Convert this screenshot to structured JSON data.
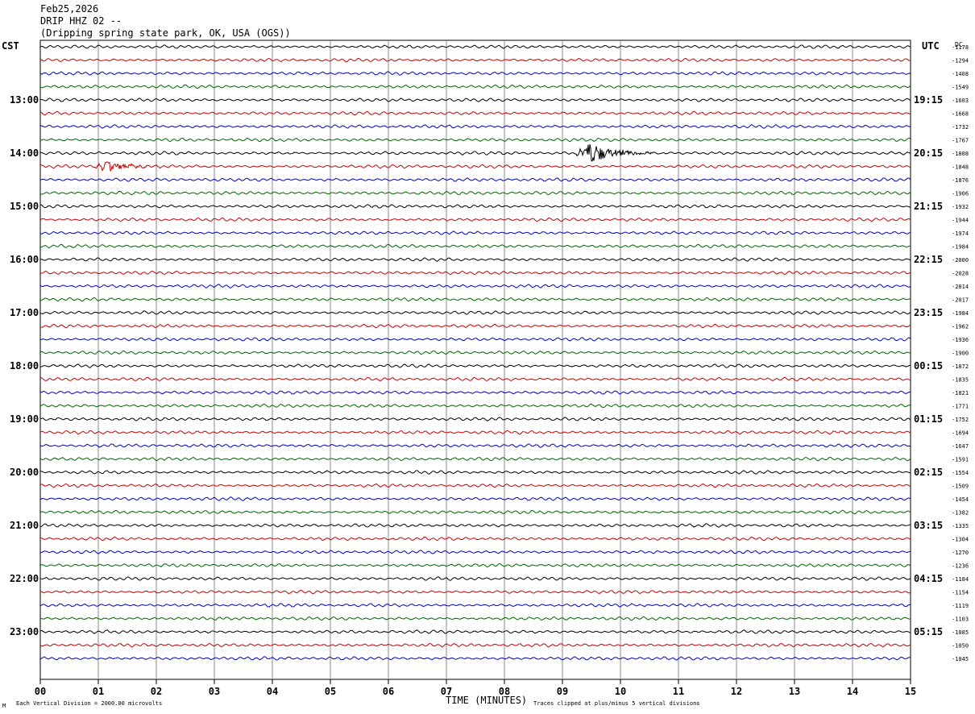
{
  "header": {
    "date": "Feb25,2026",
    "station": "DRIP HHZ 02 --",
    "location": "(Dripping spring state park, OK, USA (OGS))"
  },
  "left_axis_label": "CST",
  "right_axis_label": "UTC",
  "dc_label": "DC",
  "footer": {
    "left": "Each Vertical Division = 2000.00 microvolts",
    "center": "TIME (MINUTES)",
    "right": "Traces clipped at plus/minus 5 vertical divisions",
    "corner_mark": "M"
  },
  "colors": {
    "cycle": [
      "#000000",
      "#cc0000",
      "#0000cc",
      "#006600"
    ],
    "grid": "#888888"
  },
  "chart_data": {
    "type": "line",
    "title": "DRIP HHZ 02 --",
    "xlabel": "TIME (MINUTES)",
    "xlim": [
      0,
      15
    ],
    "x_ticks": [
      "00",
      "01",
      "02",
      "03",
      "04",
      "05",
      "06",
      "07",
      "08",
      "09",
      "10",
      "11",
      "12",
      "13",
      "14",
      "15"
    ],
    "traces_per_hour": 4,
    "left_hour_labels": [
      "13:00",
      "14:00",
      "15:00",
      "16:00",
      "17:00",
      "18:00",
      "19:00",
      "20:00",
      "21:00",
      "22:00",
      "23:00"
    ],
    "right_hour_labels": [
      "19:15",
      "20:15",
      "21:15",
      "22:15",
      "23:15",
      "00:15",
      "01:15",
      "02:15",
      "03:15",
      "04:15",
      "05:15"
    ],
    "dc_offsets": [
      -1178,
      -1294,
      -1408,
      -1549,
      -1603,
      -1668,
      -1732,
      -1767,
      -1808,
      -1848,
      -1876,
      -1906,
      -1932,
      -1944,
      -1974,
      -1984,
      -2000,
      -2028,
      -2014,
      -2017,
      -1984,
      -1962,
      -1936,
      -1900,
      -1872,
      -1835,
      -1821,
      -1771,
      -1752,
      -1694,
      -1647,
      -1591,
      -1554,
      -1509,
      -1454,
      -1382,
      -1335,
      -1304,
      -1270,
      -1236,
      -1184,
      -1154,
      -1119,
      -1103,
      -1085,
      -1050,
      -1045
    ],
    "events": [
      {
        "trace_index": 9,
        "start_min": 0.9,
        "end_min": 2.1,
        "amplitude_div": 0.7
      },
      {
        "trace_index": 8,
        "start_min": 9.2,
        "end_min": 10.6,
        "amplitude_div": 1.4
      }
    ]
  }
}
